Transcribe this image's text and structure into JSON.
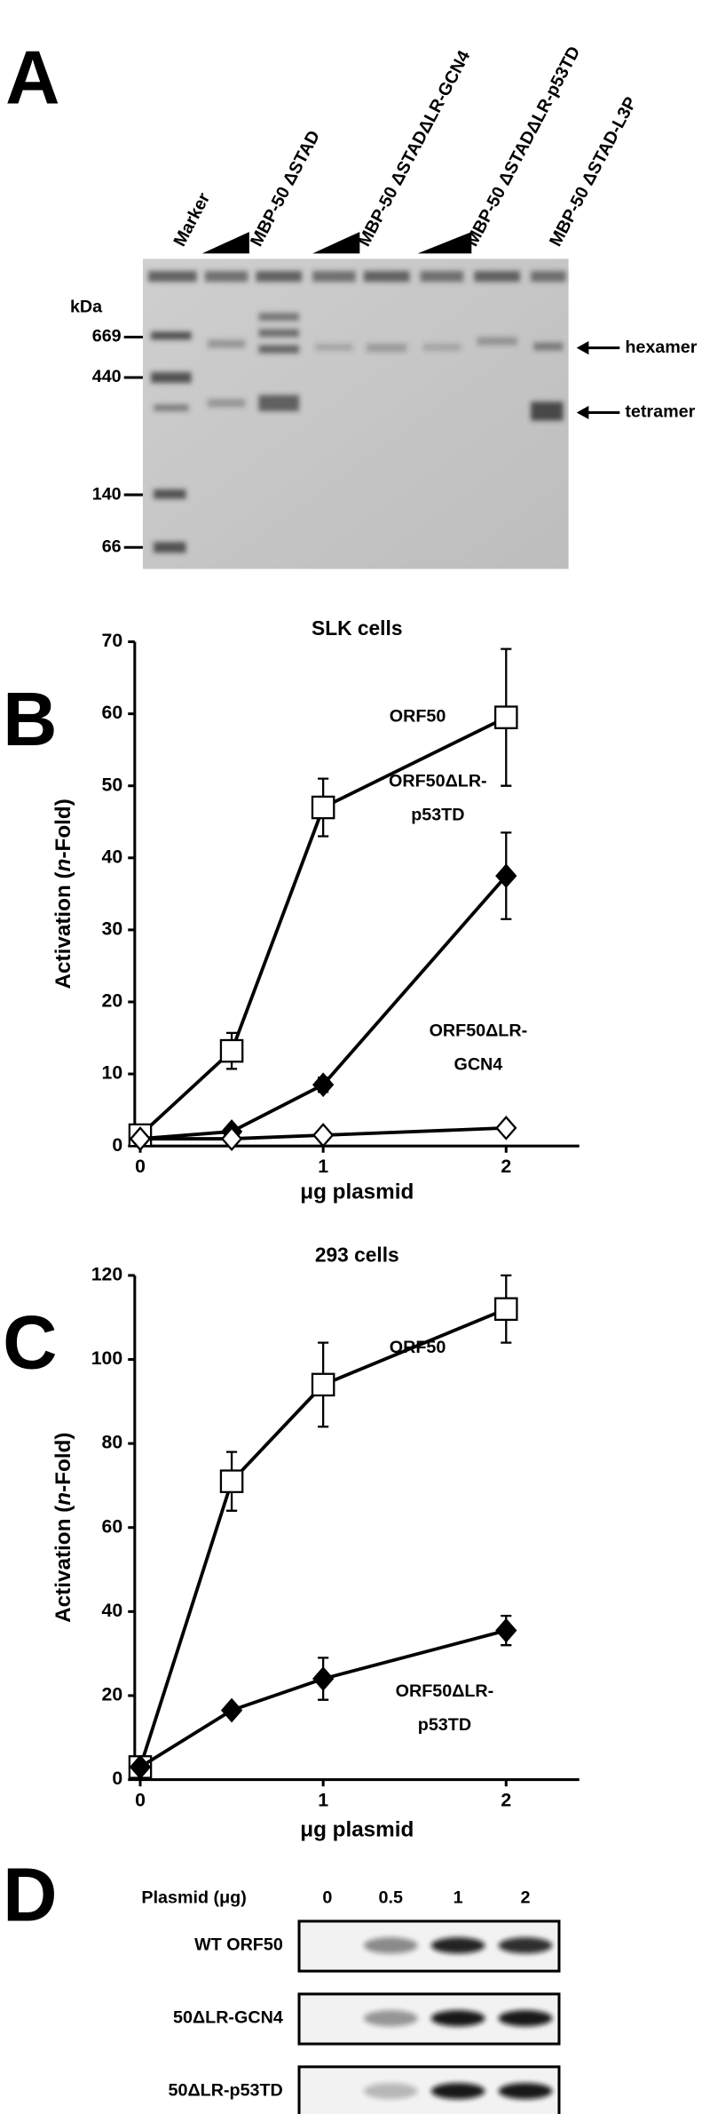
{
  "panels": {
    "A": {
      "letter": "A",
      "unit": "kDa",
      "markers": [
        "669",
        "440",
        "140",
        "66"
      ],
      "lanes": [
        "Marker",
        "MBP-50 ΔSTAD",
        "MBP-50 ΔSTADΔLR-GCN4",
        "MBP-50 ΔSTADΔLR-p53TD",
        "MBP-50 ΔSTAD-L3P"
      ],
      "arrows": [
        "hexamer",
        "tetramer"
      ]
    },
    "D": {
      "letter": "D",
      "header": "Plasmid (μg)",
      "columns": [
        "0",
        "0.5",
        "1",
        "2"
      ],
      "rows": [
        "WT ORF50",
        "50ΔLR-GCN4",
        "50ΔLR-p53TD"
      ]
    }
  },
  "chart_data": [
    {
      "type": "line",
      "panel_label": "B",
      "title": "SLK cells",
      "xlabel": "μg plasmid",
      "ylabel": [
        "Activation (",
        "n",
        "-Fold)"
      ],
      "x": [
        0,
        0.5,
        1,
        2
      ],
      "xlim": [
        -0.03,
        2.4
      ],
      "xticks": [
        0,
        1,
        2
      ],
      "ylim": [
        0,
        70
      ],
      "yticks": [
        0,
        10,
        20,
        30,
        40,
        50,
        60,
        70
      ],
      "series": [
        {
          "name": [
            "ORF50"
          ],
          "marker": "square",
          "filled": false,
          "color": "#000000",
          "values": [
            1.5,
            13.2,
            47,
            59.5
          ],
          "errors": [
            null,
            2.5,
            4,
            9.5
          ]
        },
        {
          "name": [
            "ORF50ΔLR-",
            "p53TD"
          ],
          "marker": "diamond",
          "filled": true,
          "color": "#000000",
          "values": [
            1,
            2,
            8.5,
            37.5
          ],
          "errors": [
            null,
            null,
            1,
            6
          ]
        },
        {
          "name": [
            "ORF50ΔLR-",
            "GCN4"
          ],
          "marker": "diamond",
          "filled": false,
          "color": "#000000",
          "values": [
            1,
            1,
            1.5,
            2.5
          ],
          "errors": [
            null,
            null,
            null,
            null
          ]
        }
      ]
    },
    {
      "type": "line",
      "panel_label": "C",
      "title": "293 cells",
      "xlabel": "μg plasmid",
      "ylabel": [
        "Activation (",
        "n",
        "-Fold)"
      ],
      "x": [
        0,
        0.5,
        1,
        2
      ],
      "xlim": [
        -0.03,
        2.4
      ],
      "xticks": [
        0,
        1,
        2
      ],
      "ylim": [
        0,
        120
      ],
      "yticks": [
        0,
        20,
        40,
        60,
        80,
        100,
        120
      ],
      "series": [
        {
          "name": [
            "ORF50"
          ],
          "marker": "square",
          "filled": false,
          "color": "#000000",
          "values": [
            3,
            71,
            94,
            112
          ],
          "errors": [
            null,
            7,
            10,
            8
          ]
        },
        {
          "name": [
            "ORF50ΔLR-",
            "p53TD"
          ],
          "marker": "diamond",
          "filled": true,
          "color": "#000000",
          "values": [
            3,
            16.5,
            24,
            35.5
          ],
          "errors": [
            null,
            null,
            5,
            3.5
          ]
        }
      ]
    }
  ]
}
